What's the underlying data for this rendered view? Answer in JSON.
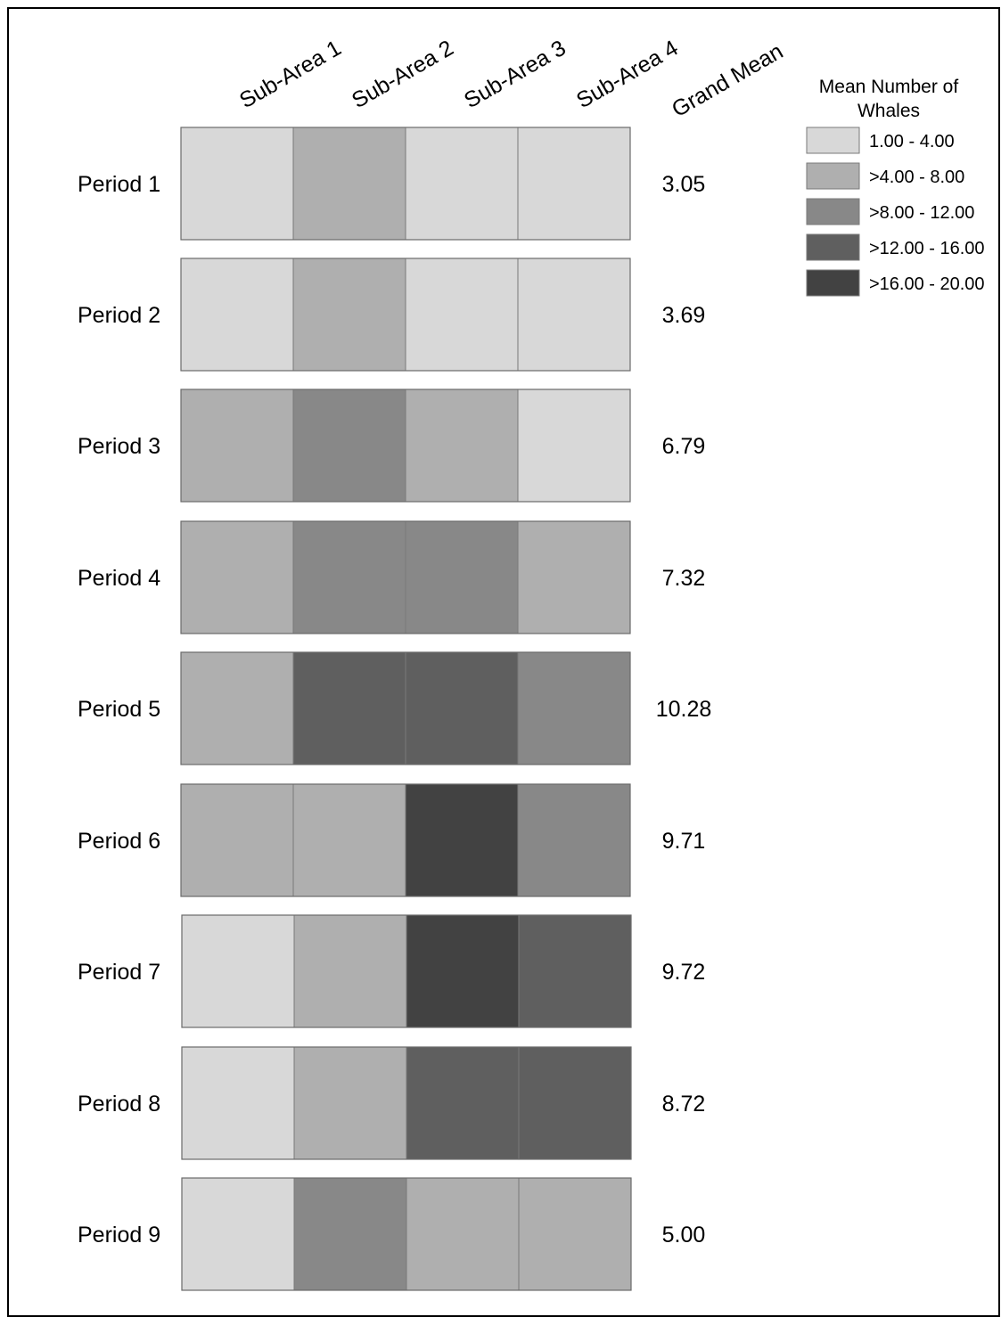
{
  "chart_data": {
    "type": "heatmap",
    "columns": [
      "Sub-Area 1",
      "Sub-Area 2",
      "Sub-Area 3",
      "Sub-Area 4"
    ],
    "mean_header": "Grand Mean",
    "rows": [
      "Period 1",
      "Period 2",
      "Period 3",
      "Period 4",
      "Period 5",
      "Period 6",
      "Period 7",
      "Period 8",
      "Period 9"
    ],
    "class_index": [
      [
        0,
        1,
        0,
        0
      ],
      [
        0,
        1,
        0,
        0
      ],
      [
        1,
        2,
        1,
        0
      ],
      [
        1,
        2,
        2,
        1
      ],
      [
        1,
        3,
        3,
        2
      ],
      [
        1,
        1,
        4,
        2
      ],
      [
        0,
        1,
        4,
        3
      ],
      [
        0,
        1,
        3,
        3
      ],
      [
        0,
        2,
        1,
        1
      ]
    ],
    "grand_mean": [
      "3.05",
      "3.69",
      "6.79",
      "7.32",
      "10.28",
      "9.71",
      "9.72",
      "8.72",
      "5.00"
    ],
    "legend": {
      "title_line1": "Mean Number of",
      "title_line2": "Whales",
      "placement": "top-right",
      "classes": [
        {
          "label": "1.00 - 4.00",
          "color": "#d8d8d8"
        },
        {
          "label": ">4.00 - 8.00",
          "color": "#afafaf"
        },
        {
          "label": ">8.00 - 12.00",
          "color": "#888888"
        },
        {
          "label": ">12.00 - 16.00",
          "color": "#5f5f5f"
        },
        {
          "label": ">16.00 - 20.00",
          "color": "#424242"
        }
      ]
    }
  }
}
